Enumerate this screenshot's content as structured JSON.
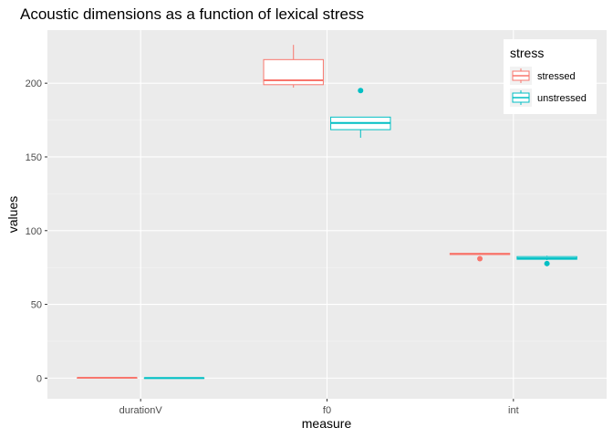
{
  "chart_data": {
    "type": "boxplot",
    "title": "Acoustic dimensions as a function of lexical stress",
    "xlabel": "measure",
    "ylabel": "values",
    "categories": [
      "durationV",
      "f0",
      "int"
    ],
    "ylim": [
      -14,
      236
    ],
    "yticks": [
      0,
      50,
      100,
      150,
      200
    ],
    "grid": true,
    "legend": {
      "title": "stress",
      "position": "top-right"
    },
    "series": [
      {
        "name": "stressed",
        "color": "#F8766D",
        "boxes": [
          {
            "category": "durationV",
            "lower_whisker": 0.1,
            "q1": 0.15,
            "median": 0.2,
            "q3": 0.25,
            "upper_whisker": 0.3,
            "outliers": []
          },
          {
            "category": "f0",
            "lower_whisker": 197,
            "q1": 199,
            "median": 202,
            "q3": 216,
            "upper_whisker": 226,
            "outliers": []
          },
          {
            "category": "int",
            "lower_whisker": 83.5,
            "q1": 83.8,
            "median": 84.2,
            "q3": 84.6,
            "upper_whisker": 85,
            "outliers": [
              81
            ]
          }
        ]
      },
      {
        "name": "unstressed",
        "color": "#00BFC4",
        "boxes": [
          {
            "category": "durationV",
            "lower_whisker": 0.05,
            "q1": 0.08,
            "median": 0.1,
            "q3": 0.12,
            "upper_whisker": 0.15,
            "outliers": []
          },
          {
            "category": "f0",
            "lower_whisker": 163,
            "q1": 168.5,
            "median": 173,
            "q3": 177,
            "upper_whisker": 177,
            "outliers": [
              195
            ]
          },
          {
            "category": "int",
            "lower_whisker": 80,
            "q1": 80.6,
            "median": 81.2,
            "q3": 82.4,
            "upper_whisker": 83,
            "outliers": [
              77.7
            ]
          }
        ]
      }
    ]
  }
}
